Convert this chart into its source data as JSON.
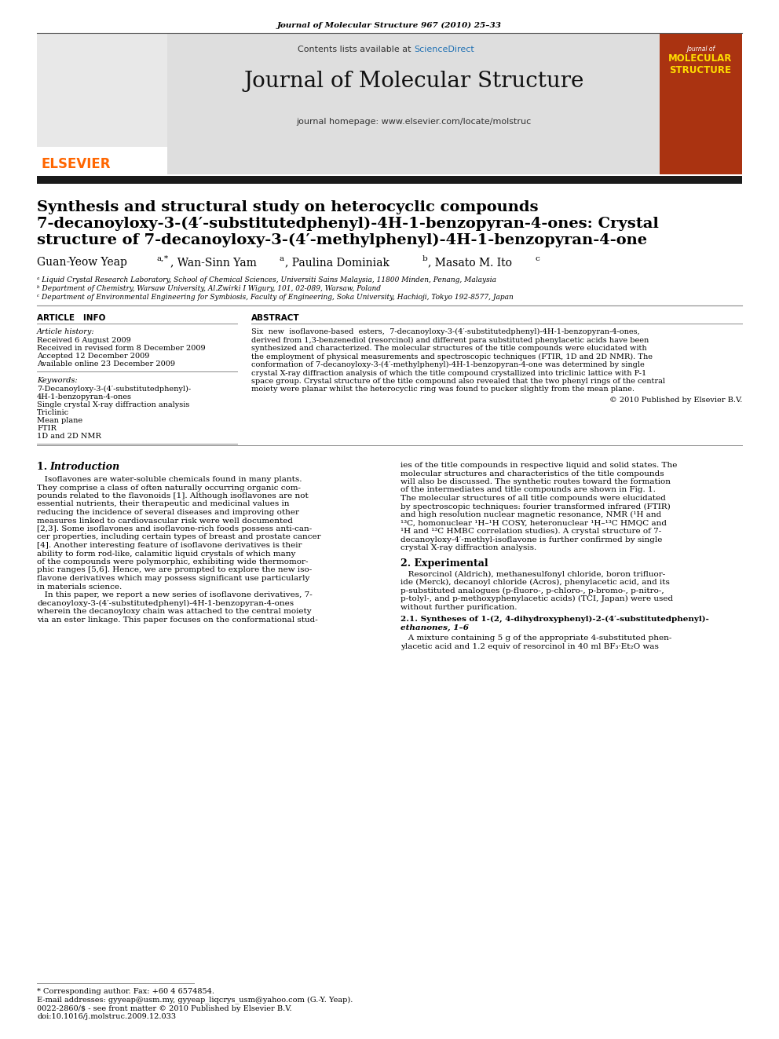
{
  "page_journal_ref": "Journal of Molecular Structure 967 (2010) 25–33",
  "journal_name": "Journal of Molecular Structure",
  "sciencedirect_color": "#2272B4",
  "homepage_line": "journal homepage: www.elsevier.com/locate/molstruc",
  "elsevier_color": "#FF6600",
  "title_line1": "Synthesis and structural study on heterocyclic compounds",
  "title_line2": "7-decanoyloxy-3-(4′-substitutedphenyl)-4H-1-benzopyran-4-ones: Crystal",
  "title_line3": "structure of 7-decanoyloxy-3-(4′-methylphenyl)-4H-1-benzopyran-4-one",
  "affil_a": "ᵃ Liquid Crystal Research Laboratory, School of Chemical Sciences, Universiti Sains Malaysia, 11800 Minden, Penang, Malaysia",
  "affil_b": "ᵇ Department of Chemistry, Warsaw University, Al.Zwirki I Wigury, 101, 02-089, Warsaw, Poland",
  "affil_c": "ᶜ Department of Environmental Engineering for Symbiosis, Faculty of Engineering, Soka University, Hachioji, Tokyo 192-8577, Japan",
  "article_info_label": "ARTICLE   INFO",
  "abstract_label": "ABSTRACT",
  "article_history_label": "Article history:",
  "received1": "Received 6 August 2009",
  "received2": "Received in revised form 8 December 2009",
  "accepted": "Accepted 12 December 2009",
  "available": "Available online 23 December 2009",
  "keywords_label": "Keywords:",
  "keyword1": "7-Decanoyloxy-3-(4′-substitutedphenyl)-",
  "keyword2": "4H-1-benzopyran-4-ones",
  "keyword3": "Single crystal X-ray diffraction analysis",
  "keyword4": "Triclinic",
  "keyword5": "Mean plane",
  "keyword6": "FTIR",
  "keyword7": "1D and 2D NMR",
  "abstract_lines": [
    "Six  new  isoflavone-based  esters,  7-decanoyloxy-3-(4′-substitutedphenyl)-4H-1-benzopyran-4-ones,",
    "derived from 1,3-benzenediol (resorcinol) and different para substituted phenylacetic acids have been",
    "synthesized and characterized. The molecular structures of the title compounds were elucidated with",
    "the employment of physical measurements and spectroscopic techniques (FTIR, 1D and 2D NMR). The",
    "conformation of 7-decanoyloxy-3-(4′-methylphenyl)-4H-1-benzopyran-4-one was determined by single",
    "crystal X-ray diffraction analysis of which the title compound crystallized into triclinic lattice with P-1",
    "space group. Crystal structure of the title compound also revealed that the two phenyl rings of the central",
    "moiety were planar whilst the heterocyclic ring was found to pucker slightly from the mean plane."
  ],
  "copyright": "© 2010 Published by Elsevier B.V.",
  "intro_heading": "1. Introduction",
  "intro_col1_lines": [
    "   Isoflavones are water-soluble chemicals found in many plants.",
    "They comprise a class of often naturally occurring organic com-",
    "pounds related to the flavonoids [1]. Although isoflavones are not",
    "essential nutrients, their therapeutic and medicinal values in",
    "reducing the incidence of several diseases and improving other",
    "measures linked to cardiovascular risk were well documented",
    "[2,3]. Some isoflavones and isoflavone-rich foods possess anti-can-",
    "cer properties, including certain types of breast and prostate cancer",
    "[4]. Another interesting feature of isoflavone derivatives is their",
    "ability to form rod-like, calamitic liquid crystals of which many",
    "of the compounds were polymorphic, exhibiting wide thermomor-",
    "phic ranges [5,6]. Hence, we are prompted to explore the new iso-",
    "flavone derivatives which may possess significant use particularly",
    "in materials science.",
    "   In this paper, we report a new series of isoflavone derivatives, 7-",
    "decanoyloxy-3-(4′-substitutedphenyl)-4H-1-benzopyran-4-ones",
    "wherein the decanoyloxy chain was attached to the central moiety",
    "via an ester linkage. This paper focuses on the conformational stud-"
  ],
  "intro_col2_lines": [
    "ies of the title compounds in respective liquid and solid states. The",
    "molecular structures and characteristics of the title compounds",
    "will also be discussed. The synthetic routes toward the formation",
    "of the intermediates and title compounds are shown in Fig. 1.",
    "The molecular structures of all title compounds were elucidated",
    "by spectroscopic techniques: fourier transformed infrared (FTIR)",
    "and high resolution nuclear magnetic resonance, NMR (¹H and",
    "¹³C, homonuclear ¹H–¹H COSY, heteronuclear ¹H–¹³C HMQC and",
    "¹H and ¹³C HMBC correlation studies). A crystal structure of 7-",
    "decanoyloxy-4′-methyl-isoflavone is further confirmed by single",
    "crystal X-ray diffraction analysis."
  ],
  "section2_heading": "2. Experimental",
  "section2_lines": [
    "   Resorcinol (Aldrich), methanesulfonyl chloride, boron trifluor-",
    "ide (Merck), decanoyl chloride (Acros), phenylacetic acid, and its",
    "p-substituted analogues (p-fluoro-, p-chloro-, p-bromo-, p-nitro-,",
    "p-tolyl-, and p-methoxyphenylacetic acids) (TCI, Japan) were used",
    "without further purification."
  ],
  "section21_heading1": "2.1. Syntheses of 1-(2, 4-dihydroxyphenyl)-2-(4′-substitutedphenyl)-",
  "section21_heading2": "ethanones, 1–6",
  "section21_lines": [
    "   A mixture containing 5 g of the appropriate 4-substituted phen-",
    "ylacetic acid and 1.2 equiv of resorcinol in 40 ml BF₃·Et₂O was"
  ],
  "footer1": "* Corresponding author. Fax: +60 4 6574854.",
  "footer2": "E-mail addresses: gyyeap@usm.my, gyyeap_liqcrys_usm@yahoo.com (G.-Y. Yeap).",
  "footer3": "0022-2860/$ - see front matter © 2010 Published by Elsevier B.V.",
  "footer4": "doi:10.1016/j.molstruc.2009.12.033",
  "bg_color": "#FFFFFF",
  "header_bg": "#DEDEDE",
  "thick_bar_color": "#1A1A1A",
  "line_color": "#888888",
  "fig_link_color": "#2272B4"
}
